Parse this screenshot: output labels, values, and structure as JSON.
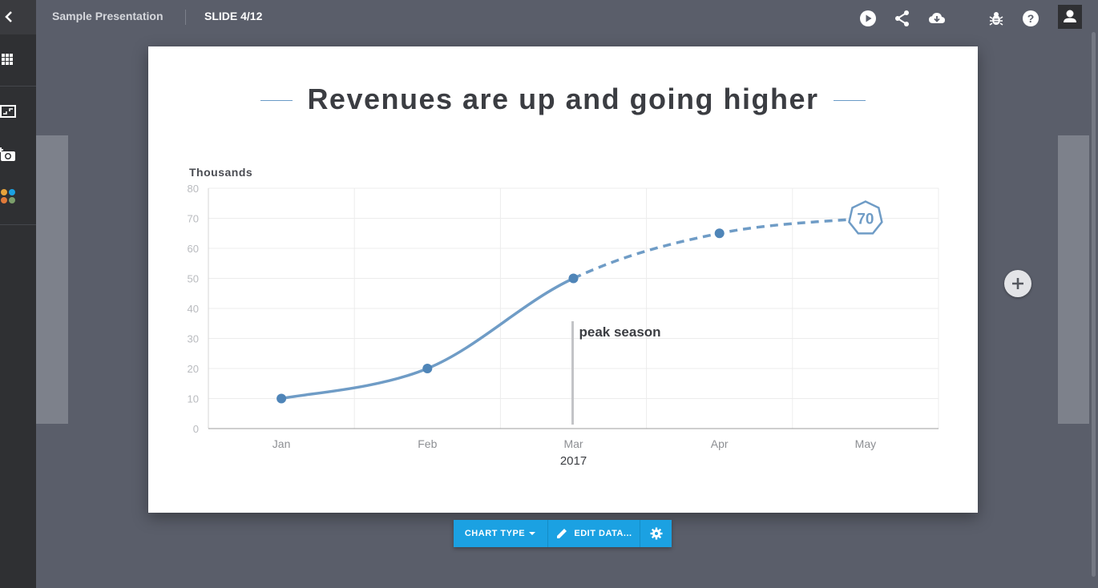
{
  "header": {
    "presentation_title": "Sample Presentation",
    "slide_counter": "SLIDE 4/12",
    "icons": [
      "play-icon",
      "share-icon",
      "cloud-download-icon",
      "bug-icon",
      "help-icon",
      "user-icon"
    ]
  },
  "sidebar": {
    "icons": [
      "back-chevron-icon",
      "grid-icon",
      "image-layout-icon",
      "add-photo-icon",
      "color-palette-icon"
    ]
  },
  "slide": {
    "title": "Revenues are up and going higher"
  },
  "chart_data": {
    "type": "line",
    "title": "",
    "ylabel": "Thousands",
    "xlabel": "",
    "categories": [
      "Jan",
      "Feb",
      "Mar",
      "Apr",
      "May"
    ],
    "x_group_label": "2017",
    "ylim": [
      0,
      80
    ],
    "yticks": [
      "0",
      "10",
      "20",
      "30",
      "40",
      "50",
      "60",
      "70",
      "80"
    ],
    "values": [
      10,
      20,
      50,
      65,
      70
    ],
    "solid_until_index": 2,
    "projected_after_index": 2,
    "highlight": {
      "index": 4,
      "label": "70"
    },
    "annotation": {
      "category": "Mar",
      "text": "peak season"
    },
    "grid": true,
    "line_color": "#6f9cc6",
    "point_color": "#4f85b8",
    "tick_color": "#b9bbbf"
  },
  "toolbar": {
    "chart_type_label": "CHART TYPE",
    "edit_data_label": "EDIT DATA...",
    "settings_icon": "gear-icon"
  },
  "colors": {
    "accent": "#1ba1e2",
    "background": "#5a5e6a",
    "sidebar": "#2f3033"
  }
}
